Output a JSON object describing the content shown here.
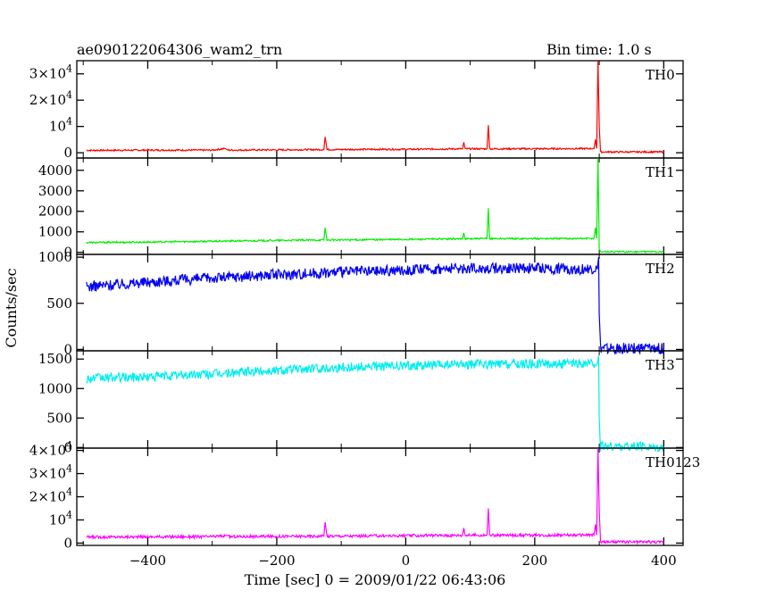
{
  "header": {
    "title": "ae090122064306_wam2_trn",
    "bin_time": "Bin time: 1.0 s"
  },
  "chart_data": {
    "type": "line",
    "title": "ae090122064306_wam2_trn",
    "subtitle": "Bin time: 1.0 s",
    "xlabel": "Time [sec] 0 = 2009/01/22 06:43:06",
    "ylabel": "Counts/sec",
    "xlim": [
      -510,
      430
    ],
    "x_ticks": [
      -400,
      -200,
      0,
      200,
      400
    ],
    "x_tick_labels": [
      "−400",
      "−200",
      "0",
      "200",
      "400"
    ],
    "grid": false,
    "panels": [
      {
        "name": "TH0",
        "color": "#ff0000",
        "ylim": [
          -2000,
          35000
        ],
        "y_ticks": [
          0,
          10000,
          20000,
          30000
        ],
        "y_tick_labels": [
          {
            "base": "0",
            "exp": ""
          },
          {
            "base": "10",
            "exp": "4"
          },
          {
            "base": "2×10",
            "exp": "4"
          },
          {
            "base": "3×10",
            "exp": "4"
          }
        ],
        "points": [
          [
            -495,
            900
          ],
          [
            -400,
            1000
          ],
          [
            -300,
            1000
          ],
          [
            -280,
            1600
          ],
          [
            -275,
            1000
          ],
          [
            -200,
            1100
          ],
          [
            -127,
            1200
          ],
          [
            -125,
            6000
          ],
          [
            -122,
            1200
          ],
          [
            -50,
            1300
          ],
          [
            0,
            1300
          ],
          [
            45,
            1400
          ],
          [
            88,
            1500
          ],
          [
            90,
            4000
          ],
          [
            92,
            1500
          ],
          [
            126,
            1500
          ],
          [
            128,
            10500
          ],
          [
            130,
            1500
          ],
          [
            200,
            1500
          ],
          [
            292,
            1600
          ],
          [
            294,
            5000
          ],
          [
            296,
            1600
          ],
          [
            298,
            35000
          ],
          [
            300,
            10000
          ],
          [
            302,
            300
          ],
          [
            400,
            300
          ]
        ]
      },
      {
        "name": "TH1",
        "color": "#00ee00",
        "ylim": [
          -100,
          4600
        ],
        "y_ticks": [
          0,
          1000,
          2000,
          3000,
          4000
        ],
        "y_tick_labels": [
          {
            "base": "0",
            "exp": ""
          },
          {
            "base": "1000",
            "exp": ""
          },
          {
            "base": "2000",
            "exp": ""
          },
          {
            "base": "3000",
            "exp": ""
          },
          {
            "base": "4000",
            "exp": ""
          }
        ],
        "points": [
          [
            -495,
            480
          ],
          [
            -400,
            500
          ],
          [
            -300,
            540
          ],
          [
            -200,
            580
          ],
          [
            -127,
            600
          ],
          [
            -125,
            1200
          ],
          [
            -122,
            600
          ],
          [
            0,
            630
          ],
          [
            88,
            660
          ],
          [
            90,
            950
          ],
          [
            92,
            660
          ],
          [
            126,
            670
          ],
          [
            128,
            2150
          ],
          [
            130,
            670
          ],
          [
            200,
            670
          ],
          [
            292,
            680
          ],
          [
            294,
            1200
          ],
          [
            296,
            680
          ],
          [
            298,
            4600
          ],
          [
            300,
            150
          ],
          [
            302,
            30
          ],
          [
            400,
            30
          ]
        ]
      },
      {
        "name": "TH2",
        "color": "#0000ee",
        "ylim": [
          -15,
          1030
        ],
        "y_ticks": [
          0,
          500,
          1000
        ],
        "y_tick_labels": [
          {
            "base": "0",
            "exp": ""
          },
          {
            "base": "500",
            "exp": ""
          },
          {
            "base": "1000",
            "exp": ""
          }
        ],
        "points": [
          [
            -495,
            680
          ],
          [
            -400,
            730
          ],
          [
            -300,
            775
          ],
          [
            -200,
            810
          ],
          [
            -100,
            840
          ],
          [
            0,
            860
          ],
          [
            100,
            880
          ],
          [
            200,
            880
          ],
          [
            297,
            870
          ],
          [
            299,
            1000
          ],
          [
            300,
            380
          ],
          [
            302,
            10
          ],
          [
            400,
            10
          ]
        ]
      },
      {
        "name": "TH3",
        "color": "#00eeee",
        "ylim": [
          -10,
          1640
        ],
        "y_ticks": [
          0,
          500,
          1000,
          1500
        ],
        "y_tick_labels": [
          {
            "base": "0",
            "exp": ""
          },
          {
            "base": "500",
            "exp": ""
          },
          {
            "base": "1000",
            "exp": ""
          },
          {
            "base": "1500",
            "exp": ""
          }
        ],
        "points": [
          [
            -495,
            1170
          ],
          [
            -400,
            1200
          ],
          [
            -300,
            1250
          ],
          [
            -200,
            1310
          ],
          [
            -100,
            1360
          ],
          [
            0,
            1390
          ],
          [
            100,
            1410
          ],
          [
            200,
            1420
          ],
          [
            297,
            1420
          ],
          [
            299,
            1560
          ],
          [
            300,
            500
          ],
          [
            302,
            15
          ],
          [
            400,
            15
          ]
        ]
      },
      {
        "name": "TH0123",
        "color": "#ff00ff",
        "ylim": [
          -1000,
          41000
        ],
        "y_ticks": [
          0,
          10000,
          20000,
          30000,
          40000
        ],
        "y_tick_labels": [
          {
            "base": "0",
            "exp": ""
          },
          {
            "base": "10",
            "exp": "4"
          },
          {
            "base": "2×10",
            "exp": "4"
          },
          {
            "base": "3×10",
            "exp": "4"
          },
          {
            "base": "4×10",
            "exp": "4"
          }
        ],
        "points": [
          [
            -495,
            2600
          ],
          [
            -400,
            2700
          ],
          [
            -300,
            2800
          ],
          [
            -280,
            3200
          ],
          [
            -275,
            2800
          ],
          [
            -200,
            2900
          ],
          [
            -127,
            3000
          ],
          [
            -125,
            9000
          ],
          [
            -122,
            3000
          ],
          [
            0,
            3200
          ],
          [
            88,
            3400
          ],
          [
            90,
            6500
          ],
          [
            92,
            3400
          ],
          [
            126,
            3400
          ],
          [
            128,
            15000
          ],
          [
            130,
            3400
          ],
          [
            200,
            3400
          ],
          [
            292,
            3500
          ],
          [
            294,
            8000
          ],
          [
            296,
            3500
          ],
          [
            298,
            41000
          ],
          [
            300,
            14000
          ],
          [
            302,
            500
          ],
          [
            400,
            500
          ]
        ]
      }
    ]
  }
}
